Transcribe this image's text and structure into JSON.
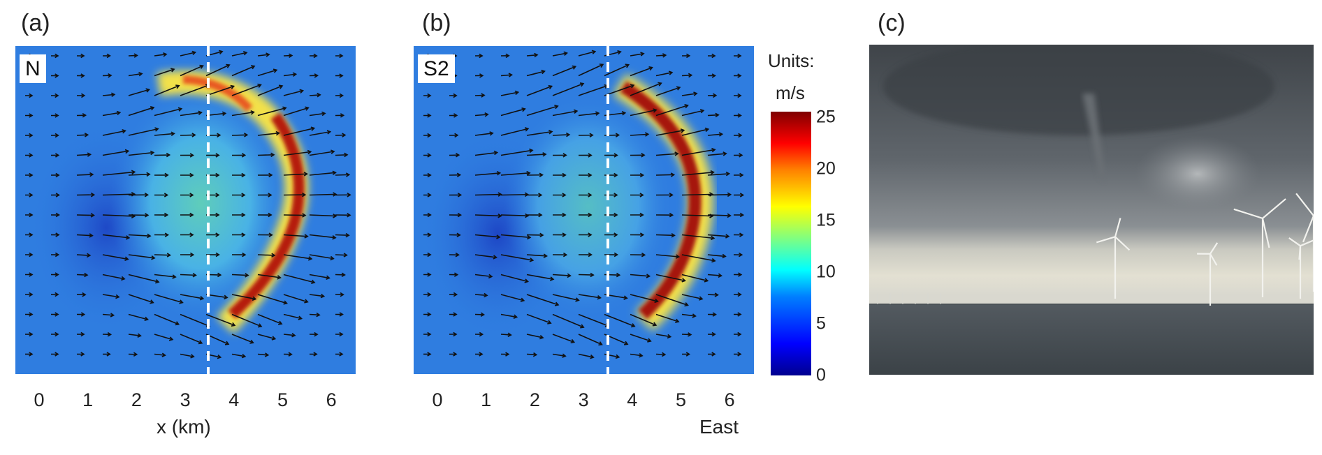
{
  "figure": {
    "panel_a": {
      "letter": "(a)",
      "inset_label": "N",
      "x_ticks": [
        "0",
        "1",
        "2",
        "3",
        "4",
        "5",
        "6"
      ],
      "x_label": "x (km)"
    },
    "panel_b": {
      "letter": "(b)",
      "inset_label": "S2",
      "x_ticks": [
        "0",
        "1",
        "2",
        "3",
        "4",
        "5",
        "6"
      ],
      "x_label": "East"
    },
    "panel_c": {
      "letter": "(c)"
    },
    "colorbar": {
      "title_line1": "Units:",
      "title_line2": "m/s",
      "ticks": [
        "25",
        "20",
        "15",
        "10",
        "5",
        "0"
      ],
      "colormap": "jet",
      "range": [
        0,
        25
      ]
    },
    "colors": {
      "field_background": "#2f7de0",
      "arc_core": "#b51d10",
      "divider": "#ffffff"
    }
  }
}
